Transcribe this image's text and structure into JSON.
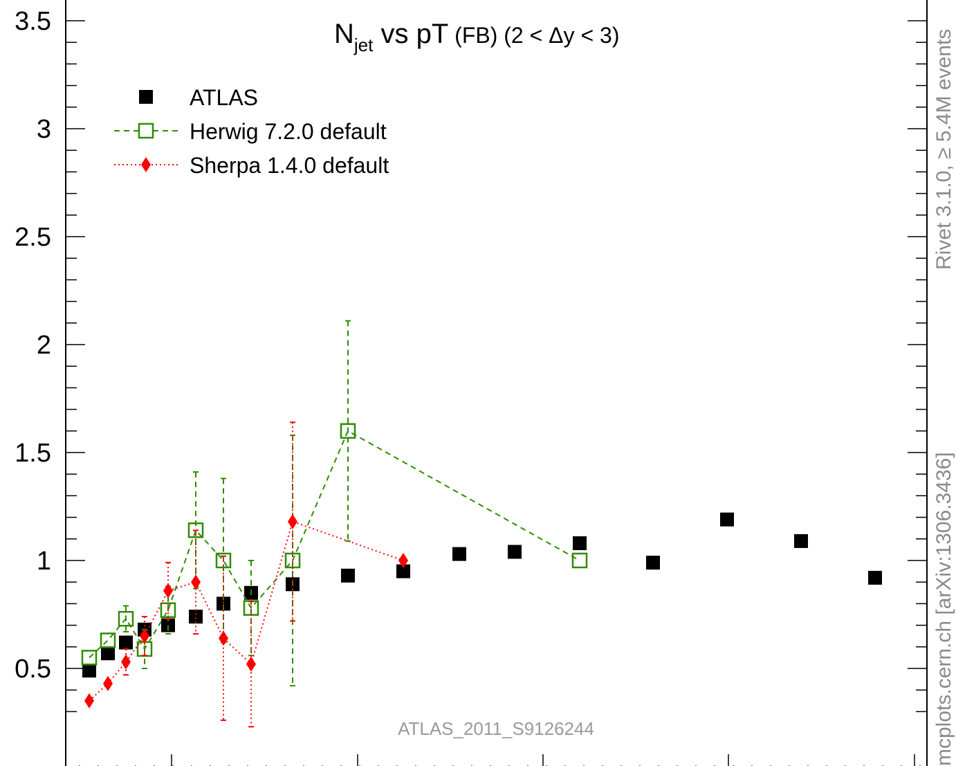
{
  "chart_data": {
    "type": "scatter",
    "title": {
      "main": "N",
      "sub": "jet",
      "rest": " vs pT",
      "fb": " (FB)",
      "range": " (2 < Δy < 3)"
    },
    "xlabel": "",
    "ylabel": "",
    "ylim": [
      0.3,
      3.6
    ],
    "xlim": [
      0,
      100
    ],
    "y_ticks": [
      "0.5",
      "1",
      "1.5",
      "2",
      "2.5",
      "3",
      "3.5"
    ],
    "y_tick_values": [
      0.5,
      1,
      1.5,
      2,
      2.5,
      3,
      3.5
    ],
    "grid": false,
    "legend_position": "top-left",
    "watermark": "ATLAS_2011_S9126244",
    "side_labels": {
      "top": "Rivet 3.1.0, ≥ 5.4M events",
      "bottom": "mcplots.cern.ch [arXiv:1306.3436]"
    },
    "series": [
      {
        "name": "ATLAS",
        "style": "data-square",
        "color": "#000000",
        "points": [
          {
            "x": 2.5,
            "y": 0.49
          },
          {
            "x": 4.5,
            "y": 0.57
          },
          {
            "x": 6.5,
            "y": 0.62
          },
          {
            "x": 8.5,
            "y": 0.68
          },
          {
            "x": 11.5,
            "y": 0.7
          },
          {
            "x": 14.5,
            "y": 0.74
          },
          {
            "x": 17.5,
            "y": 0.8
          },
          {
            "x": 20.5,
            "y": 0.85
          },
          {
            "x": 25,
            "y": 0.89
          },
          {
            "x": 31,
            "y": 0.93
          },
          {
            "x": 37,
            "y": 0.95
          },
          {
            "x": 43,
            "y": 1.03
          },
          {
            "x": 49,
            "y": 1.04
          },
          {
            "x": 56,
            "y": 1.08
          },
          {
            "x": 64,
            "y": 0.99
          },
          {
            "x": 72,
            "y": 1.19
          },
          {
            "x": 80,
            "y": 1.09
          },
          {
            "x": 88,
            "y": 0.92
          }
        ]
      },
      {
        "name": "Herwig 7.2.0 default",
        "style": "open-square-dashed",
        "color": "#2e8b00",
        "points": [
          {
            "x": 2.5,
            "y": 0.55,
            "err": 0.0
          },
          {
            "x": 4.5,
            "y": 0.63,
            "err": 0.0
          },
          {
            "x": 6.5,
            "y": 0.73,
            "err": 0.06
          },
          {
            "x": 8.5,
            "y": 0.59,
            "err": 0.09
          },
          {
            "x": 11.5,
            "y": 0.77,
            "err": 0.11
          },
          {
            "x": 14.5,
            "y": 1.14,
            "err": 0.27
          },
          {
            "x": 17.5,
            "y": 1.0,
            "err": 0.38
          },
          {
            "x": 20.5,
            "y": 0.78,
            "err": 0.22
          },
          {
            "x": 25,
            "y": 1.0,
            "err": 0.58
          },
          {
            "x": 31,
            "y": 1.6,
            "err": 0.51
          },
          {
            "x": 56,
            "y": 1.0,
            "err": 0.0
          }
        ]
      },
      {
        "name": "Sherpa 1.4.0 default",
        "style": "diamond-dotted",
        "color": "#ff0000",
        "points": [
          {
            "x": 2.5,
            "y": 0.35,
            "err": 0.0
          },
          {
            "x": 4.5,
            "y": 0.43,
            "err": 0.0
          },
          {
            "x": 6.5,
            "y": 0.53,
            "err": 0.06
          },
          {
            "x": 8.5,
            "y": 0.65,
            "err": 0.09
          },
          {
            "x": 11.5,
            "y": 0.86,
            "err": 0.13
          },
          {
            "x": 14.5,
            "y": 0.9,
            "err": 0.24
          },
          {
            "x": 17.5,
            "y": 0.64,
            "err": 0.38
          },
          {
            "x": 20.5,
            "y": 0.52,
            "err": 0.29
          },
          {
            "x": 25,
            "y": 1.18,
            "err": 0.46
          },
          {
            "x": 37,
            "y": 1.0,
            "err": 0.0
          }
        ]
      }
    ]
  }
}
